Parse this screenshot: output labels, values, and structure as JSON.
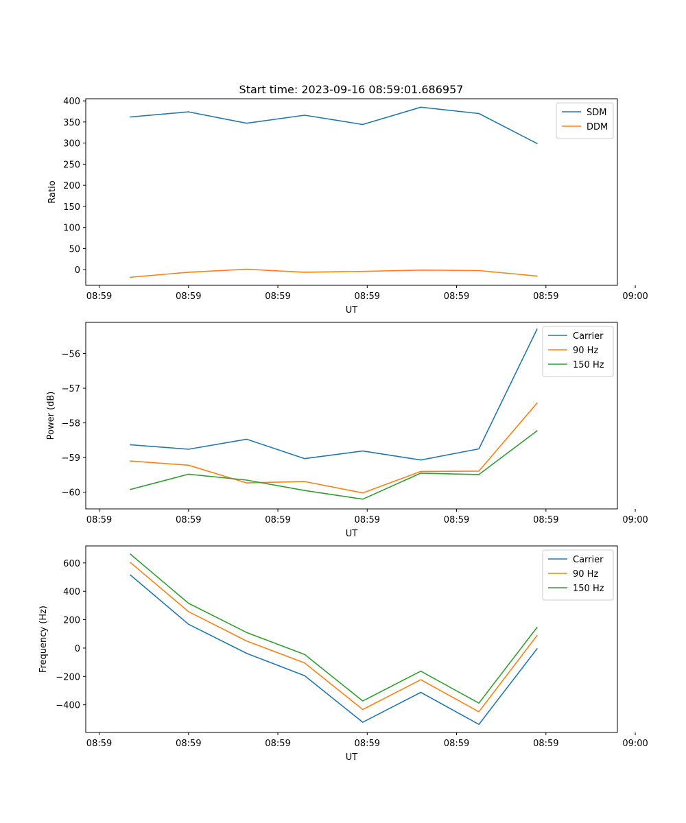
{
  "figure_title": "Start time: 2023-09-16 08:59:01.686957",
  "chart_data": [
    {
      "type": "line",
      "title": "Start time: 2023-09-16 08:59:01.686957",
      "xlabel": "UT",
      "ylabel": "Ratio",
      "x": [
        0.7,
        2.0,
        3.3,
        4.6,
        5.9,
        7.2,
        8.5,
        9.8
      ],
      "xlim": [
        -0.3,
        11.6
      ],
      "ylim": [
        -37,
        405
      ],
      "xticks": [
        0.0,
        2.0,
        4.0,
        6.0,
        8.0,
        10.0,
        12.0
      ],
      "xtick_labels": [
        "08:59",
        "08:59",
        "08:59",
        "08:59",
        "08:59",
        "08:59",
        "09:00"
      ],
      "yticks": [
        0,
        50,
        100,
        150,
        200,
        250,
        300,
        350,
        400
      ],
      "ytick_labels": [
        "0",
        "50",
        "100",
        "150",
        "200",
        "250",
        "300",
        "350",
        "400"
      ],
      "legend": "top-right",
      "series": [
        {
          "name": "SDM",
          "color": "#1f77b4",
          "values": [
            362,
            374,
            347,
            366,
            344,
            385,
            370,
            299
          ]
        },
        {
          "name": "DDM",
          "color": "#ff7f0e",
          "values": [
            -18,
            -6,
            1,
            -6,
            -4,
            -1,
            -2,
            -15
          ]
        }
      ]
    },
    {
      "type": "line",
      "title": "",
      "xlabel": "UT",
      "ylabel": "Power (dB)",
      "x": [
        0.7,
        2.0,
        3.3,
        4.6,
        5.9,
        7.2,
        8.5,
        9.8
      ],
      "xlim": [
        -0.3,
        11.6
      ],
      "ylim": [
        -60.48,
        -55.1
      ],
      "xticks": [
        0.0,
        2.0,
        4.0,
        6.0,
        8.0,
        10.0,
        12.0
      ],
      "xtick_labels": [
        "08:59",
        "08:59",
        "08:59",
        "08:59",
        "08:59",
        "08:59",
        "09:00"
      ],
      "yticks": [
        -60,
        -59,
        -58,
        -57,
        -56
      ],
      "ytick_labels": [
        "−60",
        "−59",
        "−58",
        "−57",
        "−56"
      ],
      "legend": "top-right",
      "series": [
        {
          "name": "Carrier",
          "color": "#1f77b4",
          "values": [
            -58.63,
            -58.76,
            -58.47,
            -59.03,
            -58.81,
            -59.07,
            -58.75,
            -55.3
          ]
        },
        {
          "name": "90 Hz",
          "color": "#ff7f0e",
          "values": [
            -59.1,
            -59.22,
            -59.73,
            -59.69,
            -60.02,
            -59.4,
            -59.39,
            -57.43
          ]
        },
        {
          "name": "150 Hz",
          "color": "#2ca02c",
          "values": [
            -59.92,
            -59.48,
            -59.65,
            -59.95,
            -60.2,
            -59.45,
            -59.49,
            -58.23
          ]
        }
      ]
    },
    {
      "type": "line",
      "title": "",
      "xlabel": "UT",
      "ylabel": "Frequency (Hz)",
      "x": [
        0.7,
        2.0,
        3.3,
        4.6,
        5.9,
        7.2,
        8.5,
        9.8
      ],
      "xlim": [
        -0.3,
        11.6
      ],
      "ylim": [
        -595,
        720
      ],
      "xticks": [
        0.0,
        2.0,
        4.0,
        6.0,
        8.0,
        10.0,
        12.0
      ],
      "xtick_labels": [
        "08:59",
        "08:59",
        "08:59",
        "08:59",
        "08:59",
        "08:59",
        "09:00"
      ],
      "yticks": [
        -400,
        -200,
        0,
        200,
        400,
        600
      ],
      "ytick_labels": [
        "−400",
        "−200",
        "0",
        "200",
        "400",
        "600"
      ],
      "legend": "top-right",
      "series": [
        {
          "name": "Carrier",
          "color": "#1f77b4",
          "values": [
            515,
            168,
            -37,
            -195,
            -523,
            -312,
            -538,
            -5
          ]
        },
        {
          "name": "90 Hz",
          "color": "#ff7f0e",
          "values": [
            603,
            257,
            50,
            -105,
            -433,
            -223,
            -449,
            88
          ]
        },
        {
          "name": "150 Hz",
          "color": "#2ca02c",
          "values": [
            662,
            316,
            110,
            -45,
            -373,
            -163,
            -388,
            145
          ]
        }
      ]
    }
  ]
}
